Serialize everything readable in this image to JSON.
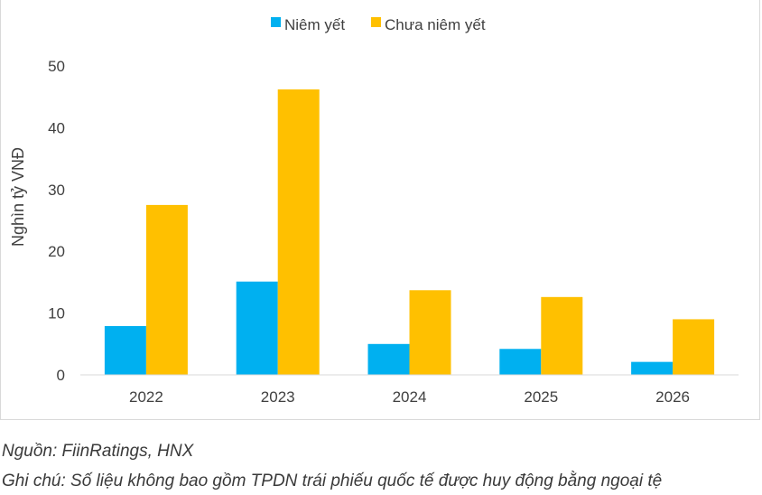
{
  "chart_data": {
    "type": "bar",
    "title": "",
    "xlabel": "",
    "ylabel": "Nghìn tỷ VNĐ",
    "categories": [
      "2022",
      "2023",
      "2024",
      "2025",
      "2026"
    ],
    "ylim": [
      0,
      50
    ],
    "yticks": [
      0,
      10,
      20,
      30,
      40,
      50
    ],
    "grid": false,
    "legend_position": "top",
    "series": [
      {
        "name": "Niêm yết",
        "color": "#00b0f0",
        "values": [
          7.9,
          15.1,
          5.0,
          4.2,
          2.1
        ]
      },
      {
        "name": "Chưa niêm yết",
        "color": "#ffc000",
        "values": [
          27.5,
          46.2,
          13.7,
          12.6,
          9.0
        ]
      }
    ]
  },
  "notes": {
    "source": "Nguồn: FiinRatings, HNX",
    "footnote": "Ghi chú: Số liệu không bao gồm TPDN trái phiếu quốc tế được huy động bằng ngoại tệ"
  }
}
